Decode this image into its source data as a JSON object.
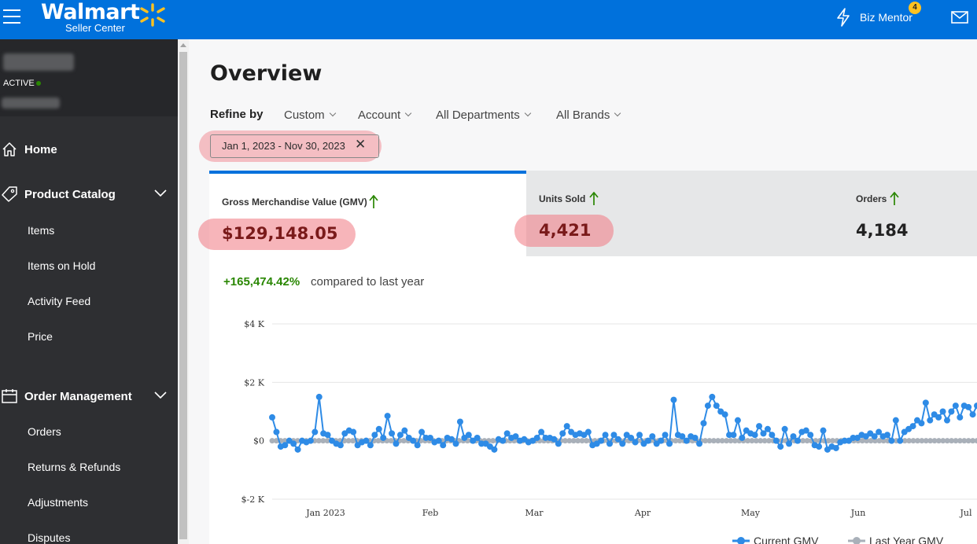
{
  "topbar": {
    "brand_name": "Walmart",
    "brand_sub": "Seller Center",
    "biz_mentor_label": "Biz Mentor",
    "notification_count": "4",
    "brand_color": "#0071dc",
    "spark_color": "#ffc220"
  },
  "sidebar": {
    "status_label": "ACTIVE",
    "sections": [
      {
        "label": "Home",
        "icon": "home-icon"
      },
      {
        "label": "Product Catalog",
        "icon": "tag-icon",
        "items": [
          "Items",
          "Items on Hold",
          "Activity Feed",
          "Price"
        ]
      },
      {
        "label": "Order Management",
        "icon": "orders-icon",
        "items": [
          "Orders",
          "Returns & Refunds",
          "Adjustments",
          "Disputes"
        ]
      }
    ]
  },
  "main": {
    "title": "Overview",
    "refine_label": "Refine by",
    "filters": [
      "Custom",
      "Account",
      "All Departments",
      "All Brands"
    ],
    "date_chip": "Jan 1, 2023 - Nov 30, 2023",
    "date_chip_close": "✕",
    "metrics": [
      {
        "label": "Gross Merchandise Value (GMV)",
        "value": "$129,148.05",
        "selected": true
      },
      {
        "label": "Units Sold",
        "value": "4,421",
        "selected": false
      },
      {
        "label": "Orders",
        "value": "4,184",
        "selected": false
      }
    ],
    "comparison_pct": "+165,474.42%",
    "comparison_text": "compared to last year"
  },
  "chart_data": {
    "type": "line",
    "y_ticks": [
      "$4 K",
      "$2 K",
      "$0",
      "$-2 K"
    ],
    "ylim": [
      -2000,
      4000
    ],
    "x_ticks": [
      "Jan 2023",
      "Feb",
      "Mar",
      "Apr",
      "May",
      "Jun",
      "Jul"
    ],
    "grid": true,
    "legend_position": "bottom-right",
    "series": [
      {
        "name": "Current GMV",
        "color": "#2e8be6",
        "values": [
          800,
          300,
          -200,
          -150,
          0,
          -100,
          -300,
          0,
          -50,
          0,
          300,
          1500,
          250,
          200,
          0,
          -100,
          -150,
          250,
          350,
          300,
          -150,
          -50,
          0,
          -150,
          200,
          400,
          100,
          850,
          250,
          -100,
          200,
          350,
          100,
          0,
          -150,
          300,
          100,
          100,
          -50,
          0,
          -150,
          100,
          50,
          -100,
          650,
          100,
          200,
          0,
          100,
          -100,
          -100,
          -200,
          -300,
          50,
          0,
          250,
          100,
          150,
          0,
          50,
          -50,
          0,
          100,
          300,
          100,
          100,
          50,
          -100,
          250,
          500,
          300,
          200,
          250,
          200,
          300,
          -150,
          -100,
          0,
          200,
          -100,
          200,
          50,
          -100,
          200,
          100,
          -50,
          200,
          -100,
          0,
          150,
          -100,
          0,
          200,
          -100,
          1400,
          200,
          150,
          0,
          150,
          100,
          -100,
          600,
          1200,
          1500,
          1200,
          1000,
          900,
          200,
          200,
          700,
          100,
          350,
          250,
          200,
          500,
          250,
          400,
          200,
          0,
          -200,
          400,
          -100,
          150,
          0,
          300,
          350,
          200,
          -150,
          -200,
          350,
          -300,
          -200,
          -250,
          -50,
          0,
          0,
          100,
          100,
          200,
          150,
          250,
          150,
          300,
          150,
          200,
          0,
          700,
          0,
          300,
          400,
          500,
          700,
          600,
          1300,
          700,
          900,
          800,
          1000,
          700,
          1000,
          1200,
          800,
          1200,
          1150,
          900,
          1200
        ]
      },
      {
        "name": "Last Year GMV",
        "color": "#a9b0b9",
        "values": [
          0,
          0,
          0,
          0,
          0,
          0,
          0,
          0,
          0,
          0,
          0,
          0,
          0,
          0,
          0,
          0,
          0,
          0,
          0,
          0,
          0,
          0,
          0,
          0,
          0,
          0,
          0,
          0,
          0,
          0,
          0,
          0,
          0,
          0,
          0,
          0,
          0,
          0,
          0,
          0,
          0,
          0,
          0,
          0,
          0,
          0,
          0,
          0,
          0,
          0,
          0,
          0,
          0,
          0,
          0,
          0,
          0,
          0,
          0,
          0,
          0,
          0,
          0,
          0,
          0,
          0,
          0,
          0,
          0,
          0,
          0,
          0,
          0,
          0,
          0,
          0,
          0,
          0,
          0,
          0,
          0,
          0,
          0,
          0,
          0,
          0,
          0,
          0,
          0,
          0,
          0,
          0,
          0,
          0,
          0,
          0,
          0,
          0,
          0,
          0,
          0,
          0,
          0,
          0,
          0,
          0,
          0,
          0,
          0,
          0,
          0,
          0,
          0,
          0,
          0,
          0,
          0,
          0,
          0,
          0,
          0,
          0,
          0,
          0,
          0,
          0,
          0,
          0,
          0,
          0,
          0,
          0,
          0,
          0,
          0,
          0,
          0,
          0,
          0,
          0,
          0,
          0,
          0,
          0,
          0,
          0,
          0,
          0,
          0,
          0,
          0,
          0,
          0,
          0,
          0,
          0,
          0,
          0,
          0,
          0,
          0,
          0,
          0,
          0,
          0,
          0,
          0
        ]
      }
    ]
  }
}
